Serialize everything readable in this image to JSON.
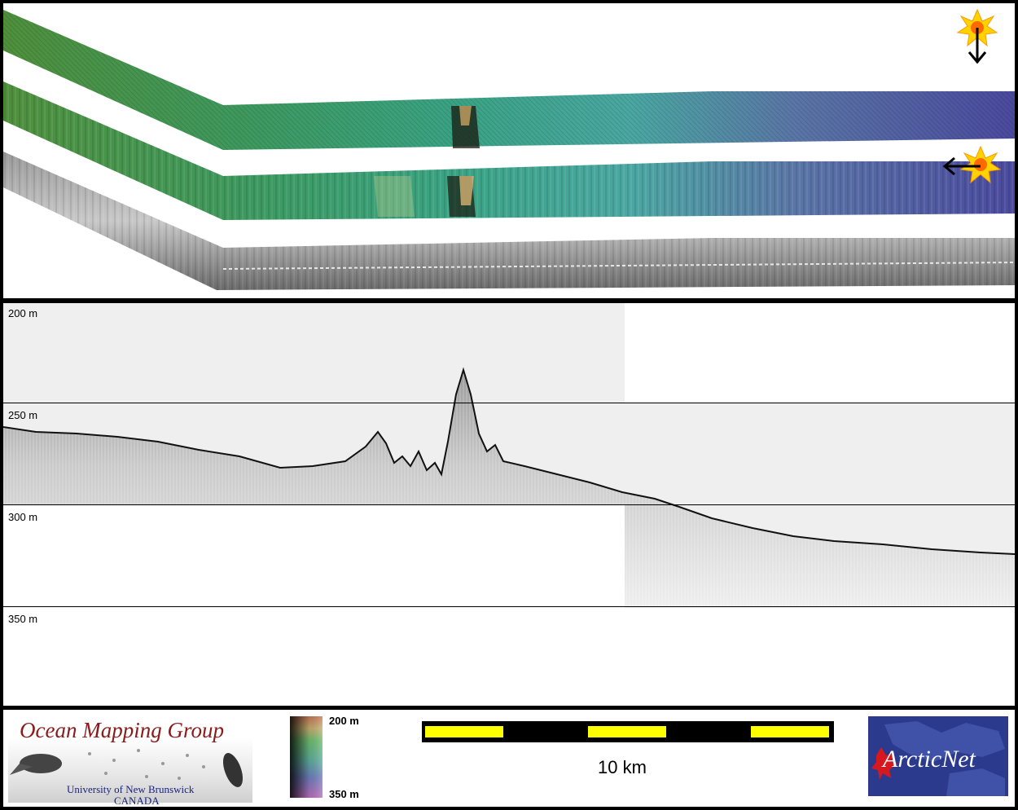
{
  "depth_axis": {
    "labels": [
      "200 m",
      "250 m",
      "300 m",
      "350 m"
    ]
  },
  "legend": {
    "depth_top": "200 m",
    "depth_bottom": "350 m"
  },
  "scale_bar": {
    "label": "10 km",
    "colors": {
      "bar": "#000000",
      "segment": "#ffff00"
    }
  },
  "logos": {
    "omg": {
      "title": "Ocean Mapping Group",
      "university": "University of New Brunswick",
      "country": "CANADA"
    },
    "arcticnet": {
      "text": "ArcticNet"
    }
  },
  "icons": [
    "sun-illumination-icon",
    "arrow-down-icon",
    "arrow-left-icon"
  ]
}
